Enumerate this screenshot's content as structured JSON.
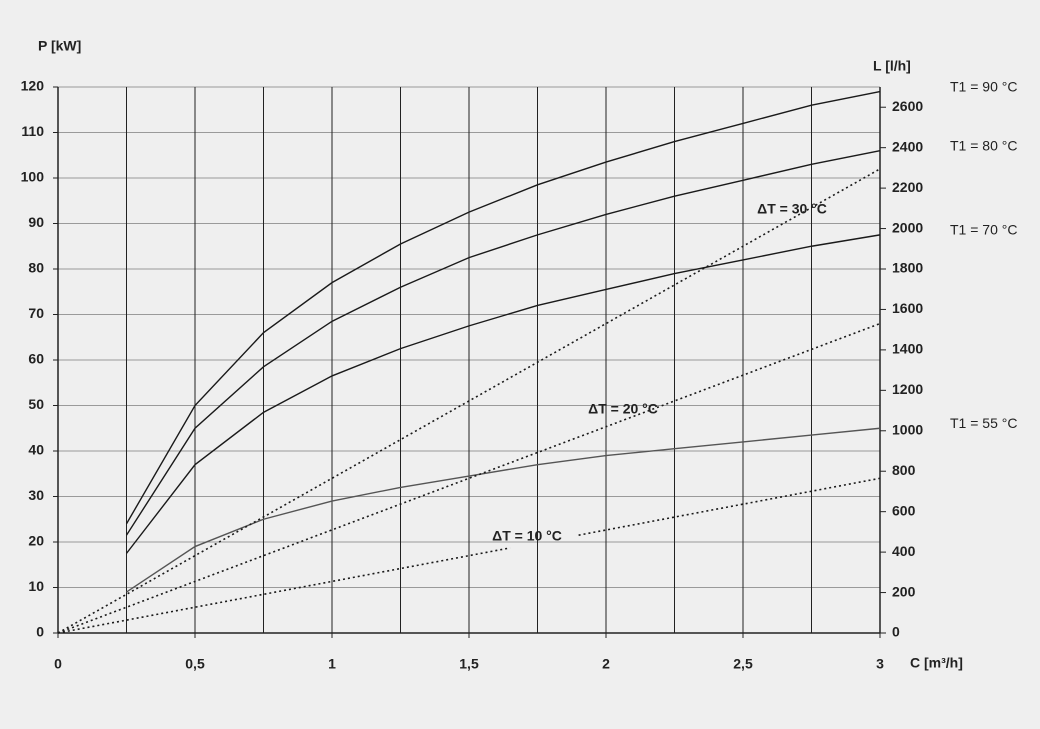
{
  "chart_data": {
    "type": "line",
    "y_label": "P [kW]",
    "y2_label": "L [l/h]",
    "x_label": "C [m³/h]",
    "xlim": [
      0,
      3
    ],
    "ylim": [
      0,
      120
    ],
    "y2lim": [
      0,
      2700
    ],
    "xticks": [
      0,
      {
        "value": 0.5,
        "label": "0,5"
      },
      1,
      {
        "value": 1.5,
        "label": "1,5"
      },
      2,
      {
        "value": 2.5,
        "label": "2,5"
      },
      3
    ],
    "xminorticks": [
      0.25,
      0.75,
      1.25,
      1.75,
      2.25,
      2.75
    ],
    "yticks": [
      0,
      10,
      20,
      30,
      40,
      50,
      60,
      70,
      80,
      90,
      100,
      110,
      120
    ],
    "y2ticks": [
      0,
      200,
      400,
      600,
      800,
      1000,
      1200,
      1400,
      1600,
      1800,
      2000,
      2200,
      2400,
      2600
    ],
    "grid": true,
    "series": [
      {
        "name": "T1 = 90 °C",
        "color": "#1a1a1a",
        "dashed": false,
        "x": [
          0.25,
          0.5,
          0.75,
          1,
          1.25,
          1.5,
          1.75,
          2,
          2.25,
          2.5,
          2.75,
          3
        ],
        "values": [
          24,
          50,
          66,
          77,
          85.5,
          92.5,
          98.5,
          103.5,
          108,
          112,
          116,
          119
        ]
      },
      {
        "name": "T1 = 80 °C",
        "color": "#1a1a1a",
        "dashed": false,
        "x": [
          0.25,
          0.5,
          0.75,
          1,
          1.25,
          1.5,
          1.75,
          2,
          2.25,
          2.5,
          2.75,
          3
        ],
        "values": [
          21.5,
          45,
          58.5,
          68.5,
          76,
          82.5,
          87.5,
          92,
          96,
          99.5,
          103,
          106
        ]
      },
      {
        "name": "T1 = 70 °C",
        "color": "#1a1a1a",
        "dashed": false,
        "x": [
          0.25,
          0.5,
          0.75,
          1,
          1.25,
          1.5,
          1.75,
          2,
          2.25,
          2.5,
          2.75,
          3
        ],
        "values": [
          17.5,
          37,
          48.5,
          56.5,
          62.5,
          67.5,
          72,
          75.5,
          79,
          82,
          85,
          87.5
        ]
      },
      {
        "name": "T1 = 55 °C",
        "color": "#555555",
        "dashed": false,
        "x": [
          0.25,
          0.5,
          0.75,
          1,
          1.25,
          1.5,
          1.75,
          2,
          2.25,
          2.5,
          2.75,
          3
        ],
        "values": [
          9,
          19,
          25,
          29,
          32,
          34.5,
          37,
          39,
          40.5,
          42,
          43.5,
          45
        ]
      },
      {
        "name": "ΔT = 30 °C",
        "color": "#1a1a1a",
        "dashed": true,
        "x": [
          0,
          3
        ],
        "values": [
          0,
          102
        ]
      },
      {
        "name": "ΔT = 20 °C",
        "color": "#1a1a1a",
        "dashed": true,
        "x": [
          0,
          3
        ],
        "values": [
          0,
          68
        ]
      },
      {
        "name": "ΔT = 10 °C",
        "color": "#1a1a1a",
        "dashed": true,
        "x": [
          0,
          1.65,
          null,
          1.9,
          3
        ],
        "values": [
          0,
          18.7,
          null,
          21.5,
          34
        ]
      }
    ]
  }
}
